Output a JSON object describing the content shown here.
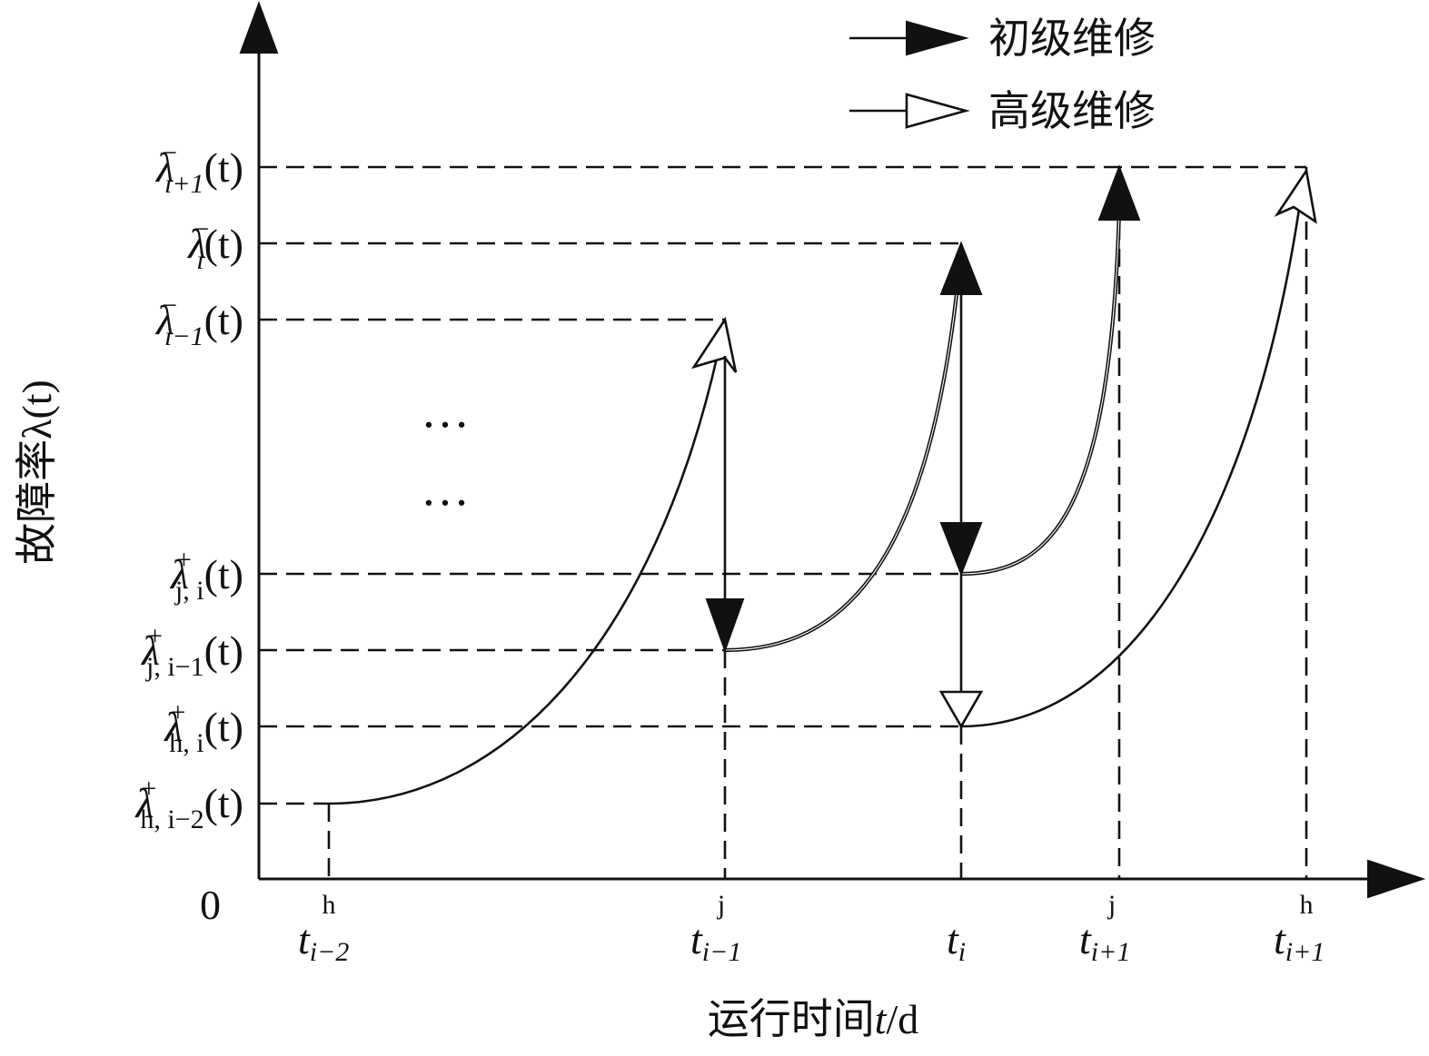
{
  "axes": {
    "origin_label": "0",
    "y_title": "故障率λ(t)",
    "x_title_pre": "运行时间",
    "x_title_var": "t",
    "x_title_post": "/d"
  },
  "legend": {
    "primary_label": "初级维修",
    "advanced_label": "高级维修"
  },
  "ellipsis": "…",
  "y_levels": [
    {
      "id": "lam-minus-i+1",
      "base": "λ",
      "sup": "−",
      "sub": "i+1",
      "arg": "(t)"
    },
    {
      "id": "lam-minus-i",
      "base": "λ",
      "sup": "−",
      "sub": "i",
      "arg": "(t)"
    },
    {
      "id": "lam-minus-i-1",
      "base": "λ",
      "sup": "−",
      "sub": "i−1",
      "arg": "(t)"
    },
    {
      "id": "lam-plus-j-i",
      "base": "λ",
      "sup": "+",
      "sub": "j, i",
      "arg": "(t)"
    },
    {
      "id": "lam-plus-j-i-1",
      "base": "λ",
      "sup": "+",
      "sub": "j, i−1",
      "arg": "(t)"
    },
    {
      "id": "lam-plus-h-i",
      "base": "λ",
      "sup": "+",
      "sub": "h, i",
      "arg": "(t)"
    },
    {
      "id": "lam-plus-h-i-2",
      "base": "λ",
      "sup": "+",
      "sub": "h, i−2",
      "arg": "(t)"
    }
  ],
  "x_ticks": [
    {
      "id": "t-h-i-2",
      "base": "t",
      "sup": "h",
      "sub": "i−2"
    },
    {
      "id": "t-j-i-1",
      "base": "t",
      "sup": "j",
      "sub": "i−1"
    },
    {
      "id": "t-i",
      "base": "t",
      "sup": "",
      "sub": "i"
    },
    {
      "id": "t-j-i+1",
      "base": "t",
      "sup": "j",
      "sub": "i+1"
    },
    {
      "id": "t-h-i+1",
      "base": "t",
      "sup": "h",
      "sub": "i+1"
    }
  ]
}
